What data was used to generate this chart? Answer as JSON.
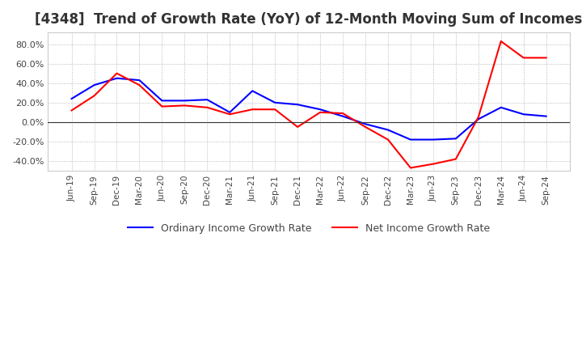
{
  "title": "[4348]  Trend of Growth Rate (YoY) of 12-Month Moving Sum of Incomes",
  "title_fontsize": 12,
  "background_color": "#ffffff",
  "plot_background": "#ffffff",
  "grid_color": "#aaaaaa",
  "ylim": [
    -50,
    92
  ],
  "yticks": [
    -40,
    -20,
    0,
    20,
    40,
    60,
    80
  ],
  "legend_labels": [
    "Ordinary Income Growth Rate",
    "Net Income Growth Rate"
  ],
  "legend_colors": [
    "#0000ff",
    "#ff0000"
  ],
  "x_labels": [
    "Jun-19",
    "Sep-19",
    "Dec-19",
    "Mar-20",
    "Jun-20",
    "Sep-20",
    "Dec-20",
    "Mar-21",
    "Jun-21",
    "Sep-21",
    "Dec-21",
    "Mar-22",
    "Jun-22",
    "Sep-22",
    "Dec-22",
    "Mar-23",
    "Jun-23",
    "Sep-23",
    "Dec-23",
    "Mar-24",
    "Jun-24",
    "Sep-24"
  ],
  "ordinary_income": [
    24,
    38,
    45,
    43,
    22,
    22,
    23,
    10,
    32,
    20,
    18,
    13,
    6,
    -2,
    -8,
    -18,
    -18,
    -17,
    3,
    15,
    8,
    6
  ],
  "net_income": [
    12,
    27,
    50,
    38,
    16,
    17,
    15,
    8,
    13,
    13,
    -5,
    10,
    9,
    -5,
    -18,
    -47,
    -43,
    -38,
    5,
    83,
    66,
    66
  ]
}
